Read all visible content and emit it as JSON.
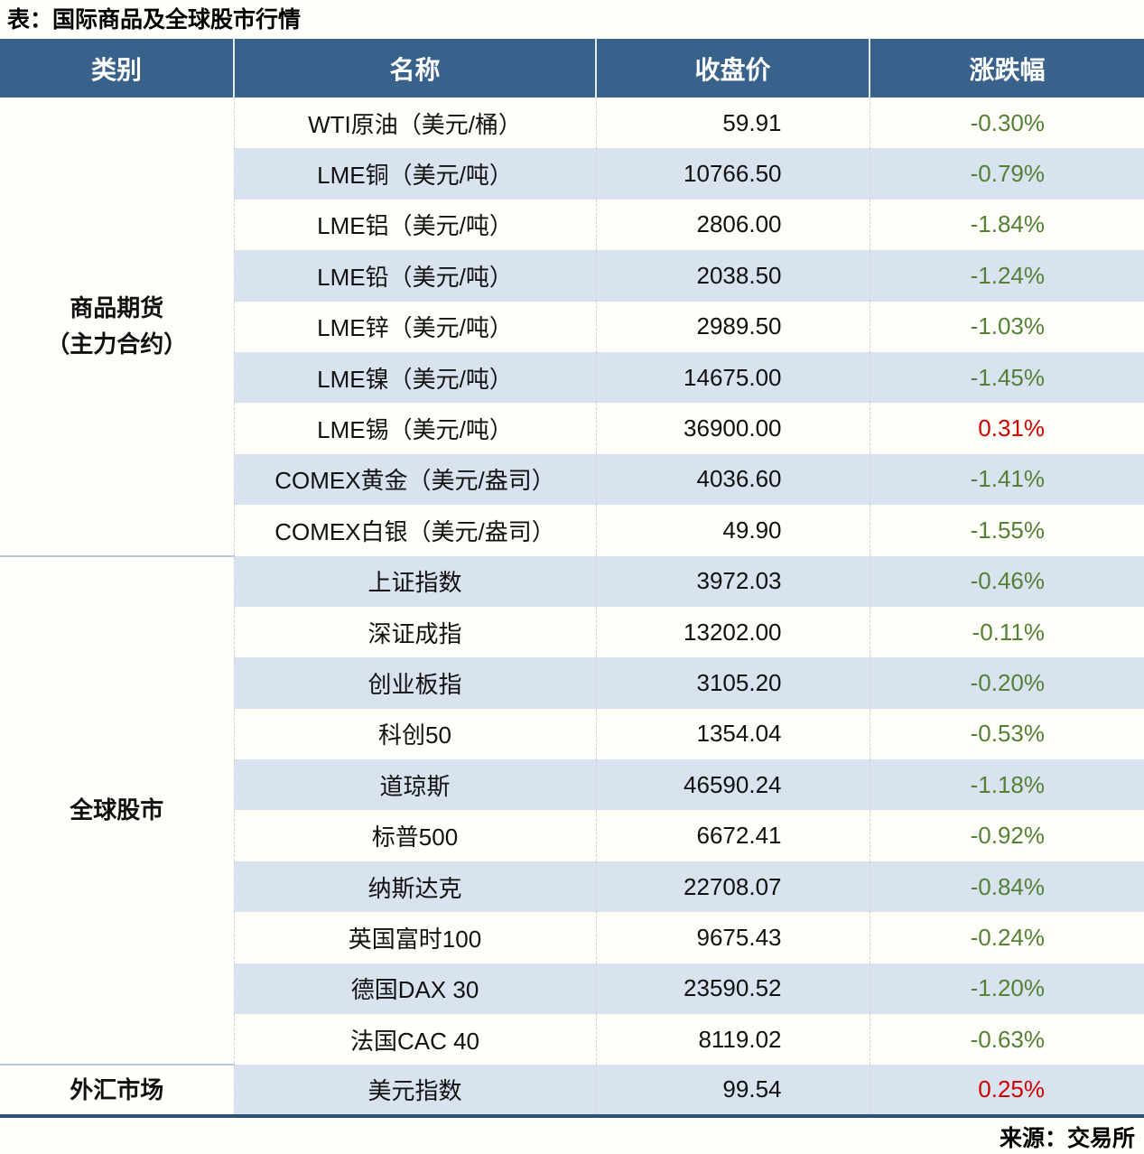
{
  "title": "表：国际商品及全球股市行情",
  "source": "来源：交易所",
  "colors": {
    "header_bg": "#38618c",
    "row_alt_bg": "#d9e2ef",
    "row_bg": "#fffef8",
    "table_bottom_border": "#2e5278",
    "up": "#d00000",
    "down": "#538135"
  },
  "chart_data": {
    "type": "table",
    "title": "国际商品及全球股市行情",
    "columns": [
      "类别",
      "名称",
      "收盘价",
      "涨跌幅"
    ],
    "groups": [
      {
        "category": "商品期货\n（主力合约）",
        "row_count": 9
      },
      {
        "category": "全球股市",
        "row_count": 10
      },
      {
        "category": "外汇市场",
        "row_count": 1
      }
    ],
    "rows": [
      {
        "name": "WTI原油（美元/桶）",
        "close": "59.91",
        "change": "-0.30%",
        "dir": "down"
      },
      {
        "name": "LME铜（美元/吨）",
        "close": "10766.50",
        "change": "-0.79%",
        "dir": "down"
      },
      {
        "name": "LME铝（美元/吨）",
        "close": "2806.00",
        "change": "-1.84%",
        "dir": "down"
      },
      {
        "name": "LME铅（美元/吨）",
        "close": "2038.50",
        "change": "-1.24%",
        "dir": "down"
      },
      {
        "name": "LME锌（美元/吨）",
        "close": "2989.50",
        "change": "-1.03%",
        "dir": "down"
      },
      {
        "name": "LME镍（美元/吨）",
        "close": "14675.00",
        "change": "-1.45%",
        "dir": "down"
      },
      {
        "name": "LME锡（美元/吨）",
        "close": "36900.00",
        "change": "0.31%",
        "dir": "up"
      },
      {
        "name": "COMEX黄金（美元/盎司）",
        "close": "4036.60",
        "change": "-1.41%",
        "dir": "down"
      },
      {
        "name": "COMEX白银（美元/盎司）",
        "close": "49.90",
        "change": "-1.55%",
        "dir": "down"
      },
      {
        "name": "上证指数",
        "close": "3972.03",
        "change": "-0.46%",
        "dir": "down"
      },
      {
        "name": "深证成指",
        "close": "13202.00",
        "change": "-0.11%",
        "dir": "down"
      },
      {
        "name": "创业板指",
        "close": "3105.20",
        "change": "-0.20%",
        "dir": "down"
      },
      {
        "name": "科创50",
        "close": "1354.04",
        "change": "-0.53%",
        "dir": "down"
      },
      {
        "name": "道琼斯",
        "close": "46590.24",
        "change": "-1.18%",
        "dir": "down"
      },
      {
        "name": "标普500",
        "close": "6672.41",
        "change": "-0.92%",
        "dir": "down"
      },
      {
        "name": "纳斯达克",
        "close": "22708.07",
        "change": "-0.84%",
        "dir": "down"
      },
      {
        "name": "英国富时100",
        "close": "9675.43",
        "change": "-0.24%",
        "dir": "down"
      },
      {
        "name": "德国DAX 30",
        "close": "23590.52",
        "change": "-1.20%",
        "dir": "down"
      },
      {
        "name": "法国CAC 40",
        "close": "8119.02",
        "change": "-0.63%",
        "dir": "down"
      },
      {
        "name": "美元指数",
        "close": "99.54",
        "change": "0.25%",
        "dir": "up"
      }
    ]
  }
}
